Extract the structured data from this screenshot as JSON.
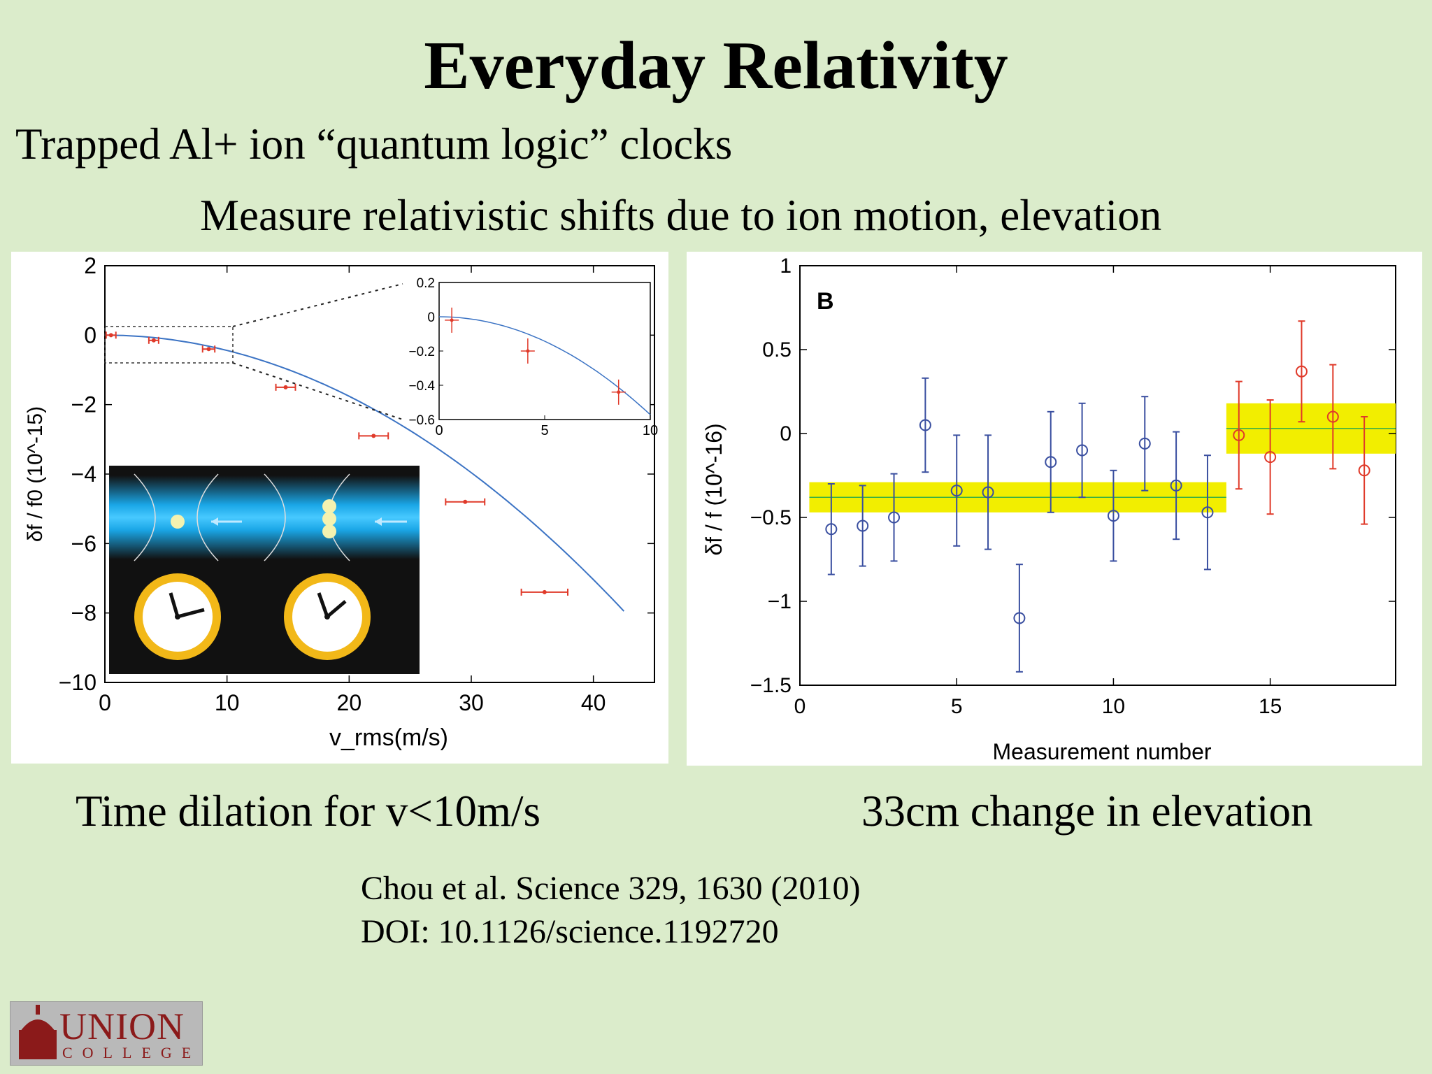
{
  "slide": {
    "title": "Everyday Relativity",
    "subtitle": "Trapped Al+ ion “quantum logic” clocks",
    "subline": "Measure relativistic shifts due to ion motion, elevation",
    "caption_left": "Time dilation for v<10m/s",
    "caption_right": "33cm change in elevation",
    "citation": "Chou et al. Science 329, 1630 (2010)",
    "doi": "DOI: 10.1126/science.1192720",
    "logo_word": "UNION",
    "logo_sub": "COLLEGE"
  },
  "colors": {
    "background": "#dbeccb",
    "fit_line": "#3b73c4",
    "red_points": "#e03a2a",
    "blue_points": "#3a4fa0",
    "band": "#f2ee00",
    "band_line": "#3cb043"
  },
  "chart_data": [
    {
      "type": "scatter",
      "xlabel": "v_rms(m/s)",
      "ylabel": "δf / f0 (10^-15)",
      "xlim": [
        0,
        45
      ],
      "ylim": [
        -10,
        2
      ],
      "xticks": [
        "0",
        "10",
        "20",
        "30",
        "40"
      ],
      "yticks": [
        "2",
        "0",
        "−2",
        "−4",
        "−6",
        "−8",
        "−10"
      ],
      "points": [
        {
          "x": 0.5,
          "y": 0.0,
          "xerr": 0.4
        },
        {
          "x": 4,
          "y": -0.15,
          "xerr": 0.4
        },
        {
          "x": 8.5,
          "y": -0.4,
          "xerr": 0.5
        },
        {
          "x": 14.8,
          "y": -1.5,
          "xerr": 0.8
        },
        {
          "x": 22,
          "y": -2.9,
          "xerr": 1.2
        },
        {
          "x": 29.5,
          "y": -4.8,
          "xerr": 1.6
        },
        {
          "x": 36,
          "y": -7.4,
          "xerr": 1.9
        }
      ],
      "fit_curve": "y = -0.0044 * x^2",
      "inset": {
        "xlim": [
          0,
          10
        ],
        "ylim": [
          -0.6,
          0.2
        ],
        "xticks": [
          "0",
          "5",
          "10"
        ],
        "yticks": [
          "0.2",
          "0",
          "−0.2",
          "−0.4",
          "−0.6"
        ],
        "points": [
          {
            "x": 0.6,
            "y": -0.02
          },
          {
            "x": 4.2,
            "y": -0.2
          },
          {
            "x": 8.5,
            "y": -0.44
          }
        ]
      }
    },
    {
      "type": "scatter",
      "panel_label": "B",
      "xlabel": "Measurement number",
      "ylabel": "δf / f (10^-16)",
      "xlim": [
        0,
        19
      ],
      "ylim": [
        -1.5,
        1
      ],
      "xticks": [
        "0",
        "5",
        "10",
        "15"
      ],
      "yticks": [
        "1",
        "0.5",
        "0",
        "−0.5",
        "−1",
        "−1.5"
      ],
      "series": [
        {
          "color": "blue",
          "points": [
            {
              "x": 1,
              "y": -0.57,
              "err": 0.27
            },
            {
              "x": 2,
              "y": -0.55,
              "err": 0.24
            },
            {
              "x": 3,
              "y": -0.5,
              "err": 0.26
            },
            {
              "x": 4,
              "y": 0.05,
              "err": 0.28
            },
            {
              "x": 5,
              "y": -0.34,
              "err": 0.33
            },
            {
              "x": 6,
              "y": -0.35,
              "err": 0.34
            },
            {
              "x": 7,
              "y": -1.1,
              "err": 0.32
            },
            {
              "x": 8,
              "y": -0.17,
              "err": 0.3
            },
            {
              "x": 9,
              "y": -0.1,
              "err": 0.28
            },
            {
              "x": 10,
              "y": -0.49,
              "err": 0.27
            },
            {
              "x": 11,
              "y": -0.06,
              "err": 0.28
            },
            {
              "x": 12,
              "y": -0.31,
              "err": 0.32
            },
            {
              "x": 13,
              "y": -0.47,
              "err": 0.34
            }
          ],
          "band": {
            "x0": 0.3,
            "x1": 13.6,
            "center": -0.38,
            "half_width": 0.09
          }
        },
        {
          "color": "red",
          "points": [
            {
              "x": 14,
              "y": -0.01,
              "err": 0.32
            },
            {
              "x": 15,
              "y": -0.14,
              "err": 0.34
            },
            {
              "x": 16,
              "y": 0.37,
              "err": 0.3
            },
            {
              "x": 17,
              "y": 0.1,
              "err": 0.31
            },
            {
              "x": 18,
              "y": -0.22,
              "err": 0.32
            }
          ],
          "band": {
            "x0": 13.6,
            "x1": 19,
            "center": 0.03,
            "half_width": 0.15
          }
        }
      ]
    }
  ]
}
